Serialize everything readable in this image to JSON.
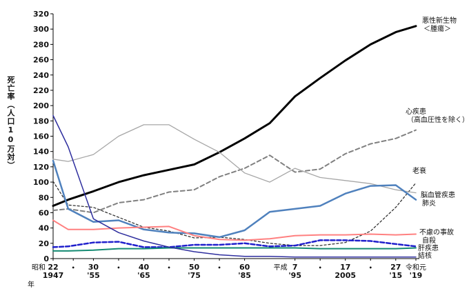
{
  "chart_data": {
    "type": "line",
    "ylabel": "死亡率（人口10万対）",
    "x_unit_label": "年",
    "ylim": [
      0,
      320
    ],
    "yticks": [
      0,
      20,
      40,
      60,
      80,
      100,
      120,
      140,
      160,
      180,
      200,
      220,
      240,
      260,
      280,
      300,
      320
    ],
    "x": [
      1947,
      1950,
      1955,
      1960,
      1965,
      1970,
      1975,
      1980,
      1985,
      1990,
      1995,
      2000,
      2005,
      2010,
      2015,
      2019
    ],
    "x_ticks": [
      {
        "x": 1947,
        "era": "昭和",
        "top": "22",
        "bottom": "1947"
      },
      {
        "x": 1951,
        "era": "",
        "top": "•",
        "bottom": ""
      },
      {
        "x": 1955,
        "era": "",
        "top": "30",
        "bottom": "'55"
      },
      {
        "x": 1960,
        "era": "",
        "top": "•",
        "bottom": ""
      },
      {
        "x": 1965,
        "era": "",
        "top": "40",
        "bottom": "'65"
      },
      {
        "x": 1970,
        "era": "",
        "top": "•",
        "bottom": ""
      },
      {
        "x": 1975,
        "era": "",
        "top": "50",
        "bottom": "'75"
      },
      {
        "x": 1980,
        "era": "",
        "top": "•",
        "bottom": ""
      },
      {
        "x": 1985,
        "era": "",
        "top": "60",
        "bottom": "'85"
      },
      {
        "x": 1995,
        "era": "平成",
        "top": "7",
        "bottom": "'95"
      },
      {
        "x": 2000,
        "era": "",
        "top": "•",
        "bottom": ""
      },
      {
        "x": 2005,
        "era": "",
        "top": "17",
        "bottom": "2005"
      },
      {
        "x": 2010,
        "era": "",
        "top": "•",
        "bottom": ""
      },
      {
        "x": 2015,
        "era": "",
        "top": "27",
        "bottom": "'15"
      },
      {
        "x": 2019,
        "era": "令和元",
        "top": "",
        "bottom": "'19"
      }
    ],
    "series": [
      {
        "name": "悪性新生物\n＜腫瘍＞",
        "color": "#000000",
        "dash": "",
        "width": 3,
        "values": [
          69,
          77,
          88,
          100,
          109,
          116,
          123,
          139,
          157,
          177,
          212,
          236,
          259,
          280,
          296,
          304
        ]
      },
      {
        "name": "心疾患\n（高血圧性を除く）",
        "color": "#808080",
        "dash": "6,4",
        "width": 2,
        "values": [
          63,
          65,
          60,
          73,
          77,
          87,
          90,
          107,
          118,
          135,
          113,
          117,
          137,
          150,
          157,
          168
        ]
      },
      {
        "name": "老衰",
        "color": "#333333",
        "dash": "3,3",
        "width": 1.3,
        "values": [
          101,
          70,
          67,
          54,
          41,
          36,
          27,
          28,
          25,
          20,
          17,
          17,
          21,
          36,
          67,
          99
        ]
      },
      {
        "name": "脳血管疾患",
        "color": "#a6a6a6",
        "dash": "",
        "width": 1.3,
        "values": [
          130,
          127,
          136,
          160,
          175,
          175,
          156,
          139,
          112,
          100,
          118,
          106,
          102,
          98,
          90,
          86
        ]
      },
      {
        "name": "肺炎",
        "color": "#4f81bd",
        "dash": "",
        "width": 2.5,
        "values": [
          128,
          65,
          48,
          50,
          38,
          34,
          33,
          28,
          37,
          61,
          65,
          69,
          85,
          95,
          96,
          77
        ]
      },
      {
        "name": "不慮の事故",
        "color": "#ff8080",
        "dash": "",
        "width": 2,
        "values": [
          50,
          38,
          38,
          40,
          41,
          42,
          30,
          25,
          24,
          26,
          30,
          31,
          31,
          32,
          31,
          32
        ]
      },
      {
        "name": "自殺",
        "color": "#1f1fcc",
        "dash": "6,3",
        "width": 2.5,
        "values": [
          15,
          16,
          21,
          22,
          15,
          15,
          18,
          18,
          20,
          16,
          17,
          24,
          24,
          23,
          19,
          16
        ]
      },
      {
        "name": "肝疾患",
        "color": "#138a72",
        "dash": "",
        "width": 2,
        "values": [
          10,
          10,
          11,
          13,
          13,
          14,
          14,
          14,
          14,
          14,
          14,
          13,
          13,
          13,
          13,
          14
        ]
      },
      {
        "name": "結核",
        "color": "#2e2e9e",
        "dash": "",
        "width": 1.5,
        "values": [
          187,
          146,
          52,
          34,
          23,
          15,
          9,
          5,
          3,
          3,
          2,
          2,
          2,
          2,
          2,
          2
        ]
      }
    ]
  }
}
